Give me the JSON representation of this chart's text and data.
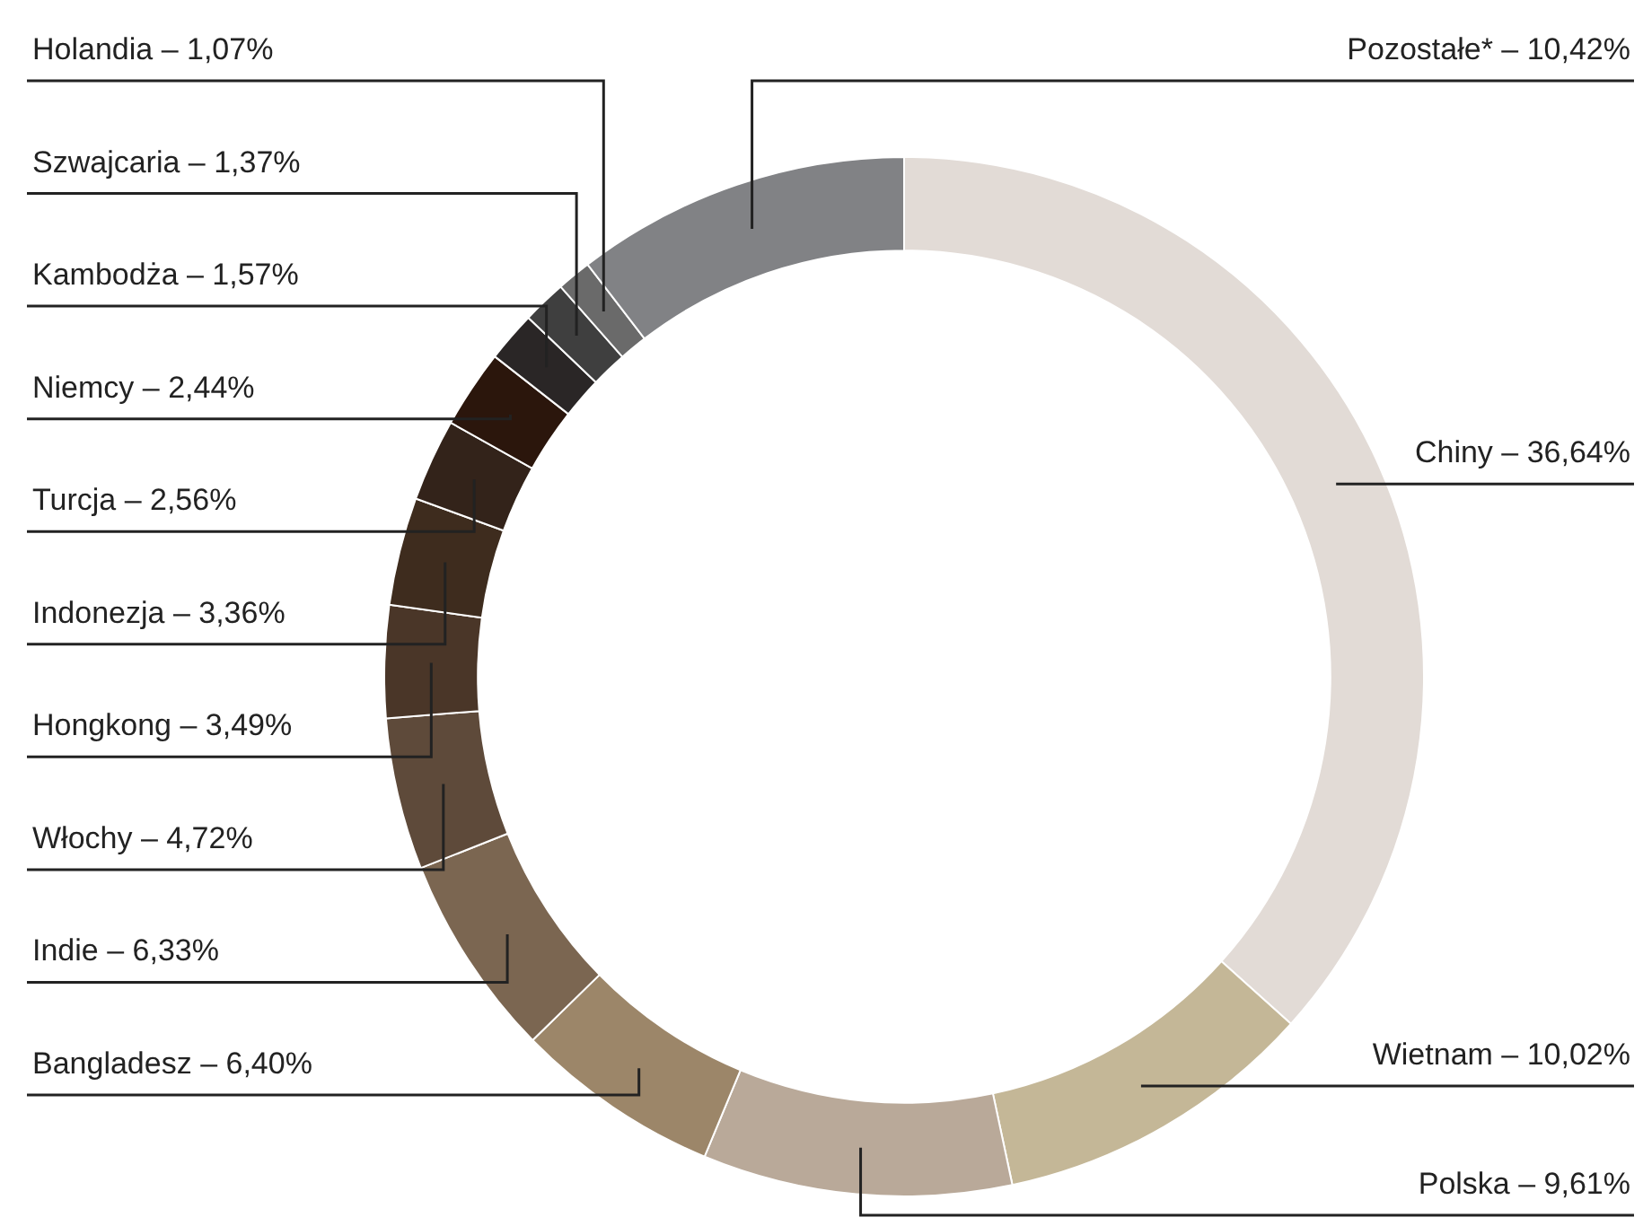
{
  "chart_data": {
    "type": "donut",
    "categories": [
      "Chiny",
      "Wietnam",
      "Polska",
      "Bangladesz",
      "Indie",
      "Włochy",
      "Hongkong",
      "Indonezja",
      "Turcja",
      "Niemcy",
      "Kambodża",
      "Szwajcaria",
      "Holandia",
      "Pozostałe*"
    ],
    "values": [
      36.64,
      10.02,
      9.61,
      6.4,
      6.33,
      4.72,
      3.49,
      3.36,
      2.56,
      2.44,
      1.57,
      1.37,
      1.07,
      10.42
    ],
    "value_labels": [
      "36,64%",
      "10,02%",
      "9,61%",
      "6,40%",
      "6,33%",
      "4,72%",
      "3,49%",
      "3,36%",
      "2,56%",
      "2,44%",
      "1,57%",
      "1,37%",
      "1,07%",
      "10,42%"
    ],
    "colors": [
      "#e2dbd6",
      "#c4b797",
      "#b9a999",
      "#9c8669",
      "#7b6651",
      "#5e4a3a",
      "#4a3628",
      "#3e2c1e",
      "#33231a",
      "#2b160c",
      "#2a2626",
      "#3f3f3f",
      "#6a6a6a",
      "#818285"
    ],
    "legend": false
  }
}
